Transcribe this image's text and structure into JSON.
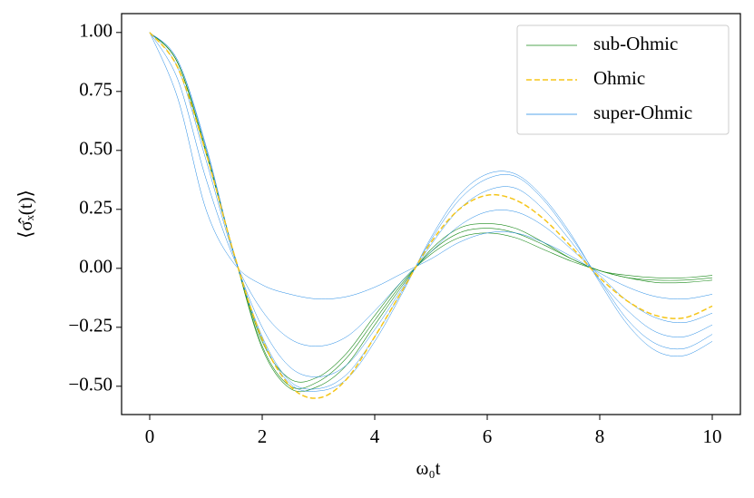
{
  "chart_data": {
    "type": "line",
    "x_label": "ω₀t",
    "y_label": "⟨σ̂ₓ(t)⟩",
    "x": [
      0,
      0.5,
      1,
      1.5,
      2,
      2.5,
      3,
      3.5,
      4,
      4.5,
      5,
      5.5,
      6,
      6.5,
      7,
      7.5,
      8,
      8.5,
      9,
      9.5,
      10
    ],
    "xlim": [
      -0.5,
      10.5
    ],
    "ylim": [
      -0.62,
      1.08
    ],
    "xticks": [
      0,
      2,
      4,
      6,
      8,
      10
    ],
    "yticks": [
      {
        "value": -0.5,
        "label": "−0.50"
      },
      {
        "value": -0.25,
        "label": "−0.25"
      },
      {
        "value": 0,
        "label": "0.00"
      },
      {
        "value": 0.25,
        "label": "0.25"
      },
      {
        "value": 0.5,
        "label": "0.50"
      },
      {
        "value": 0.75,
        "label": "0.75"
      },
      {
        "value": 1,
        "label": "1.00"
      }
    ],
    "legend": "upper right",
    "series": [
      {
        "name": "sub-Ohmic",
        "color": "#1a8a1a",
        "style": "solid",
        "width": 0.6,
        "values": [
          [
            1,
            0.87,
            0.49,
            0.06,
            -0.33,
            -0.5,
            -0.48,
            -0.38,
            -0.22,
            -0.06,
            0.07,
            0.15,
            0.17,
            0.15,
            0.1,
            0.04,
            -0.01,
            -0.03,
            -0.04,
            -0.04,
            -0.03
          ],
          [
            1,
            0.87,
            0.49,
            0.06,
            -0.31,
            -0.47,
            -0.46,
            -0.36,
            -0.2,
            -0.05,
            0.06,
            0.13,
            0.15,
            0.13,
            0.08,
            0.03,
            -0.01,
            -0.04,
            -0.05,
            -0.05,
            -0.04
          ],
          [
            1,
            0.87,
            0.5,
            0.06,
            -0.34,
            -0.51,
            -0.5,
            -0.41,
            -0.24,
            -0.07,
            0.08,
            0.17,
            0.19,
            0.17,
            0.11,
            0.04,
            -0.01,
            -0.04,
            -0.06,
            -0.06,
            -0.05
          ]
        ]
      },
      {
        "name": "super-Ohmic",
        "color": "#1e88e5",
        "style": "solid",
        "width": 0.5,
        "values": [
          [
            1,
            0.72,
            0.25,
            0.02,
            -0.07,
            -0.11,
            -0.13,
            -0.12,
            -0.08,
            -0.02,
            0.04,
            0.11,
            0.15,
            0.15,
            0.11,
            0.05,
            -0.02,
            -0.08,
            -0.12,
            -0.13,
            -0.11
          ],
          [
            1,
            0.8,
            0.38,
            0.04,
            -0.18,
            -0.3,
            -0.33,
            -0.29,
            -0.18,
            -0.05,
            0.07,
            0.18,
            0.24,
            0.24,
            0.18,
            0.08,
            -0.03,
            -0.14,
            -0.21,
            -0.23,
            -0.19
          ],
          [
            1,
            0.85,
            0.46,
            0.05,
            -0.25,
            -0.42,
            -0.46,
            -0.41,
            -0.26,
            -0.08,
            0.1,
            0.25,
            0.33,
            0.34,
            0.25,
            0.11,
            -0.05,
            -0.18,
            -0.27,
            -0.29,
            -0.24
          ],
          [
            1,
            0.88,
            0.51,
            0.06,
            -0.29,
            -0.48,
            -0.51,
            -0.45,
            -0.29,
            -0.09,
            0.12,
            0.29,
            0.38,
            0.39,
            0.29,
            0.13,
            -0.05,
            -0.22,
            -0.32,
            -0.34,
            -0.28
          ],
          [
            1,
            0.88,
            0.52,
            0.06,
            -0.3,
            -0.49,
            -0.52,
            -0.47,
            -0.31,
            -0.1,
            0.13,
            0.31,
            0.4,
            0.4,
            0.3,
            0.14,
            -0.06,
            -0.24,
            -0.35,
            -0.37,
            -0.31
          ]
        ]
      },
      {
        "name": "Ohmic",
        "color": "#f5c518",
        "style": "dashed",
        "width": 1.5,
        "values": [
          [
            1,
            0.85,
            0.49,
            0.06,
            -0.3,
            -0.5,
            -0.55,
            -0.47,
            -0.29,
            -0.09,
            0.11,
            0.25,
            0.31,
            0.29,
            0.21,
            0.09,
            -0.04,
            -0.14,
            -0.2,
            -0.21,
            -0.16
          ]
        ]
      }
    ],
    "legend_order": [
      0,
      2,
      1
    ]
  }
}
